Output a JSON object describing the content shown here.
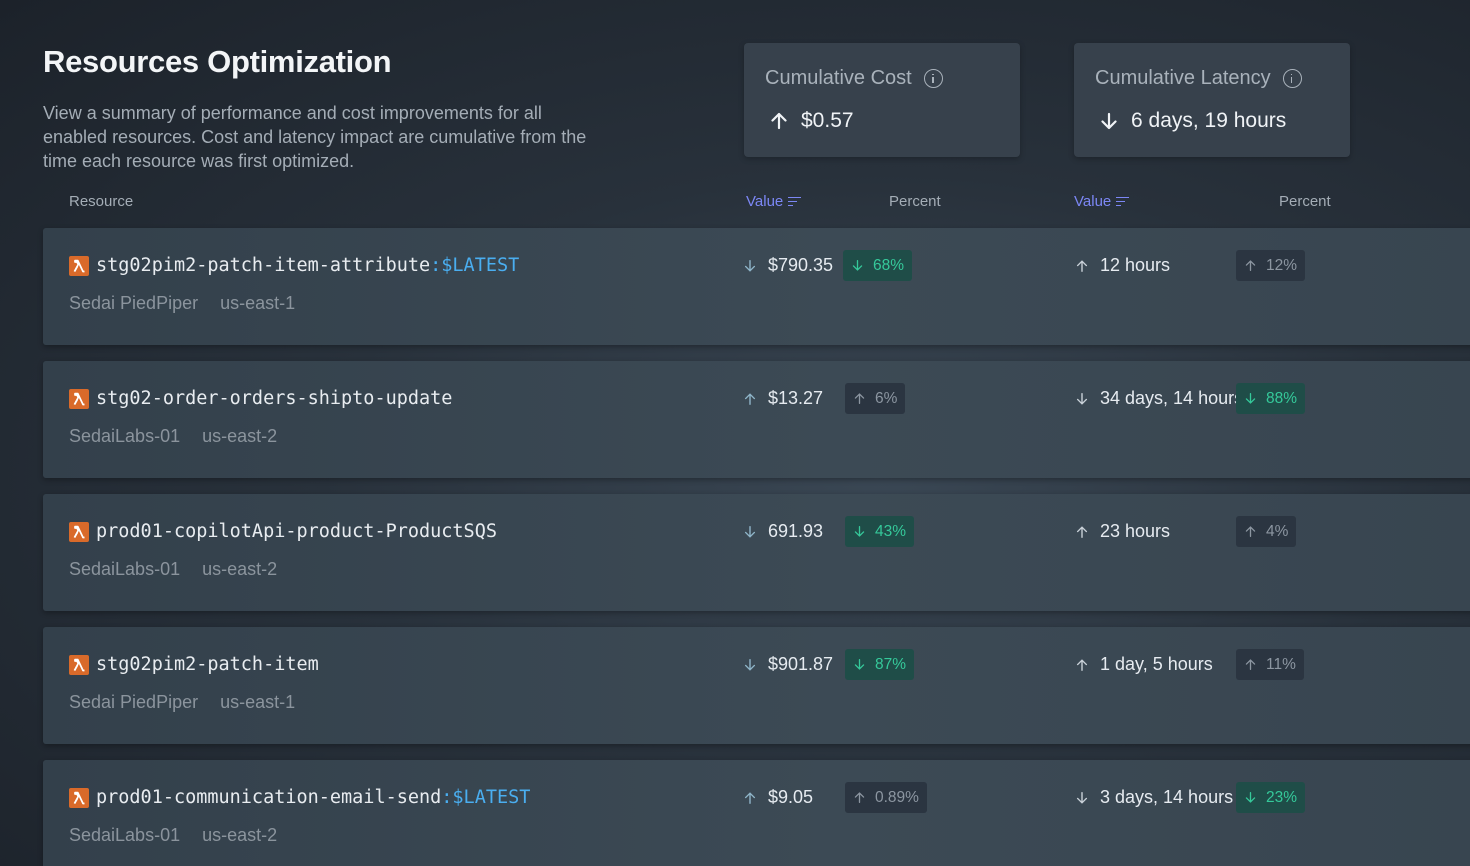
{
  "header": {
    "title": "Resources Optimization",
    "description": "View a summary of performance and cost improvements for all enabled resources. Cost and latency impact are cumulative from the time each resource was first optimized."
  },
  "cards": {
    "cost": {
      "label": "Cumulative Cost",
      "value": "$0.57",
      "direction": "up",
      "icon": "info-icon"
    },
    "latency": {
      "label": "Cumulative Latency",
      "value": "6 days, 19 hours",
      "direction": "down",
      "icon": "info-icon"
    }
  },
  "columns": {
    "resource": "Resource",
    "cost_value": "Value",
    "cost_percent": "Percent",
    "latency_value": "Value",
    "latency_percent": "Percent"
  },
  "colors": {
    "accent": "#7c87f5",
    "good": "#35c99a",
    "lambda": "#d96a2a",
    "link": "#4aaef0"
  },
  "rows": [
    {
      "name": "stg02pim2-patch-item-attribute",
      "suffix": ":$LATEST",
      "account": "Sedai PiedPiper",
      "region": "us-east-1",
      "cost": {
        "dir": "down",
        "value": "$790.35",
        "pct": "68%",
        "good": true
      },
      "latency": {
        "dir": "up",
        "value": "12 hours",
        "pct": "12%",
        "good": false
      }
    },
    {
      "name": "stg02-order-orders-shipto-update",
      "suffix": "",
      "account": "SedaiLabs-01",
      "region": "us-east-2",
      "cost": {
        "dir": "up",
        "value": "$13.27",
        "pct": "6%",
        "good": false
      },
      "latency": {
        "dir": "down",
        "value": "34 days, 14 hours",
        "pct": "88%",
        "good": true
      }
    },
    {
      "name": "prod01-copilotApi-product-ProductSQS",
      "suffix": "",
      "account": "SedaiLabs-01",
      "region": "us-east-2",
      "cost": {
        "dir": "down",
        "value": "691.93",
        "pct": "43%",
        "good": true
      },
      "latency": {
        "dir": "up",
        "value": "23 hours",
        "pct": "4%",
        "good": false
      }
    },
    {
      "name": "stg02pim2-patch-item",
      "suffix": "",
      "account": "Sedai PiedPiper",
      "region": "us-east-1",
      "cost": {
        "dir": "down",
        "value": "$901.87",
        "pct": "87%",
        "good": true
      },
      "latency": {
        "dir": "up",
        "value": "1 day, 5 hours",
        "pct": "11%",
        "good": false
      }
    },
    {
      "name": "prod01-communication-email-send",
      "suffix": ":$LATEST",
      "account": "SedaiLabs-01",
      "region": "us-east-2",
      "cost": {
        "dir": "up",
        "value": "$9.05",
        "pct": "0.89%",
        "good": false
      },
      "latency": {
        "dir": "down",
        "value": "3 days, 14 hours",
        "pct": "23%",
        "good": true
      }
    }
  ]
}
